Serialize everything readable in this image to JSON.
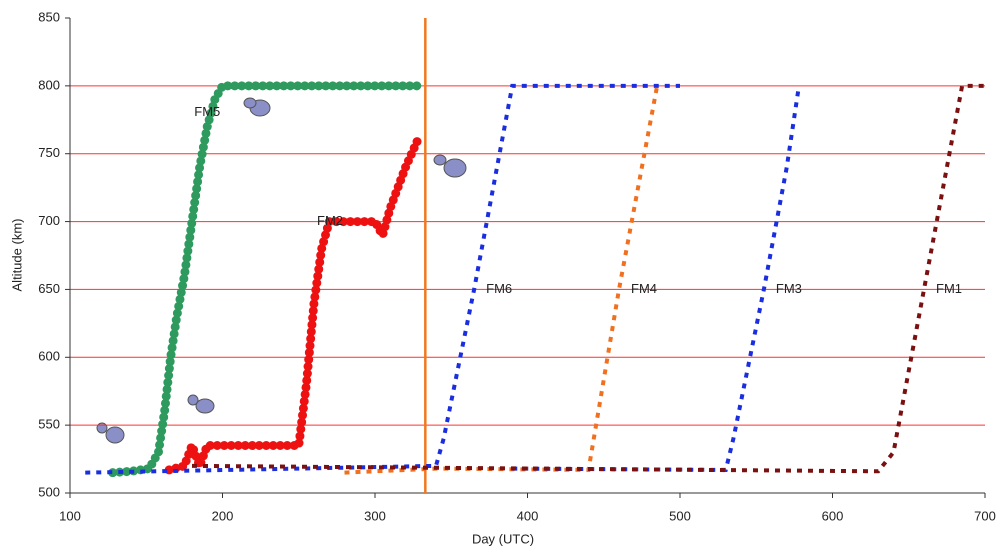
{
  "chart_data": {
    "type": "line",
    "x_label": "Day (UTC)",
    "y_label": "Altitude (km)",
    "xlim": [
      100,
      700
    ],
    "xticks": [
      100,
      200,
      300,
      400,
      500,
      600,
      700
    ],
    "ylim": [
      500,
      850
    ],
    "yticks": [
      500,
      550,
      600,
      650,
      700,
      750,
      800,
      850
    ],
    "grid": true,
    "grid_color": "#ff3030",
    "vline": {
      "x": 333,
      "color": "#f07820"
    },
    "series": [
      {
        "name": "FM5",
        "color": "#2e9a5e",
        "style": "dots",
        "x": [
          128,
          140,
          152,
          158,
          162,
          166,
          170,
          175,
          180,
          185,
          190,
          195,
          200,
          330
        ],
        "values": [
          515,
          516,
          518,
          530,
          560,
          600,
          630,
          660,
          700,
          740,
          770,
          790,
          800,
          800
        ]
      },
      {
        "name": "FM2",
        "color": "#ee1111",
        "style": "dots",
        "x": [
          165,
          175,
          180,
          185,
          190,
          250,
          255,
          260,
          265,
          270,
          300,
          305,
          310,
          320,
          328
        ],
        "values": [
          517,
          520,
          535,
          520,
          535,
          535,
          580,
          640,
          680,
          700,
          700,
          690,
          710,
          740,
          760
        ]
      },
      {
        "name": "FM6",
        "color": "#1a2ee0",
        "style": "dash",
        "x": [
          110,
          250,
          340,
          345,
          365,
          380,
          390,
          500
        ],
        "values": [
          515,
          518,
          520,
          540,
          650,
          740,
          800,
          800
        ]
      },
      {
        "name": "FM4",
        "color": "#f07020",
        "style": "dash",
        "x": [
          280,
          340,
          440,
          460,
          475,
          485
        ],
        "values": [
          515,
          518,
          517,
          650,
          740,
          800
        ]
      },
      {
        "name": "FM3",
        "color": "#1a2ee0",
        "style": "dash",
        "x": [
          390,
          530,
          535,
          555,
          570,
          578
        ],
        "values": [
          518,
          517,
          540,
          650,
          740,
          800
        ]
      },
      {
        "name": "FM1",
        "color": "#7a1010",
        "style": "dash",
        "x": [
          180,
          630,
          640,
          660,
          675,
          685,
          700
        ],
        "values": [
          520,
          516,
          530,
          650,
          740,
          800,
          800
        ]
      }
    ]
  }
}
